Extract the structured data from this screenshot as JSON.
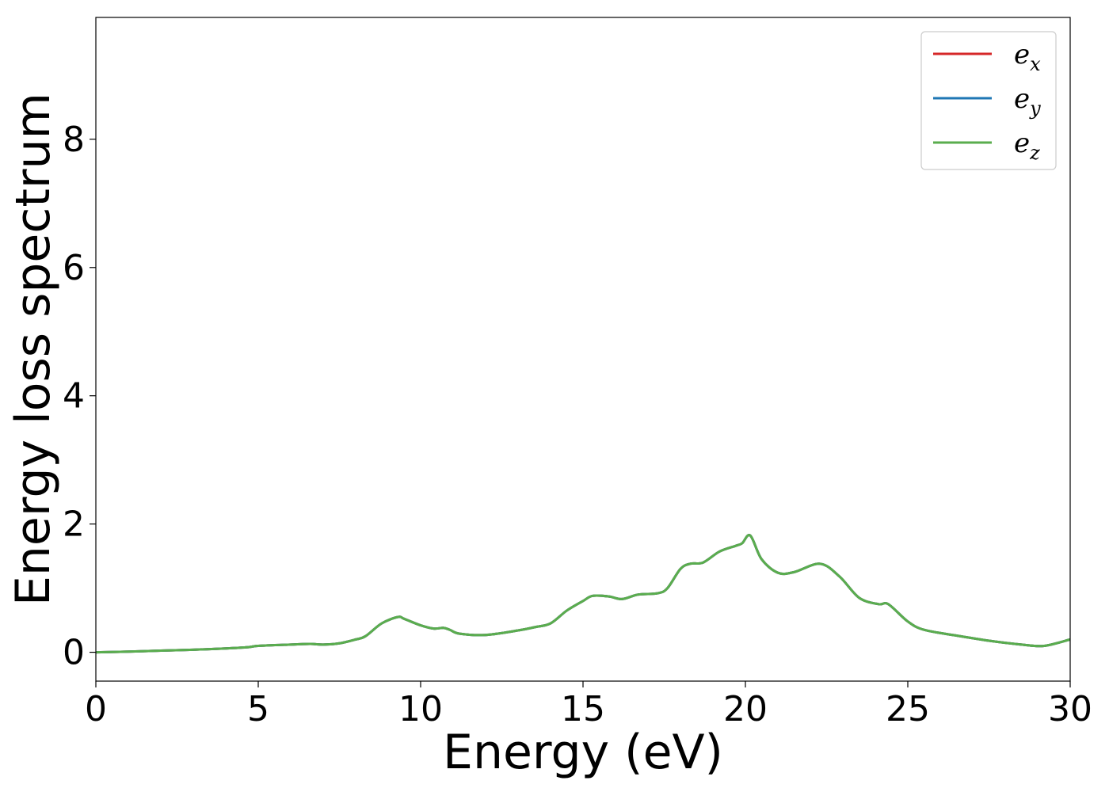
{
  "chart_data": {
    "type": "line",
    "xlabel": "Energy (eV)",
    "ylabel": "Energy loss spectrum",
    "xlim": [
      0,
      30
    ],
    "ylim": [
      -0.45,
      9.9
    ],
    "xticks": [
      0,
      5,
      10,
      15,
      20,
      25,
      30
    ],
    "xtick_labels": [
      "0",
      "5",
      "10",
      "15",
      "20",
      "25",
      "30"
    ],
    "yticks": [
      0,
      2,
      4,
      6,
      8
    ],
    "ytick_labels": [
      "0",
      "2",
      "4",
      "6",
      "8"
    ],
    "grid": false,
    "legend": "top-right",
    "x": [
      0,
      1,
      2,
      3,
      4,
      4.7,
      5,
      6,
      6.6,
      7,
      7.5,
      8,
      8.3,
      8.8,
      9.3,
      9.5,
      10,
      10.4,
      10.7,
      10.9,
      11.2,
      12,
      13,
      13.5,
      14,
      14.5,
      15,
      15.3,
      15.8,
      16.2,
      16.7,
      17.3,
      17.6,
      18,
      18.3,
      18.7,
      19.2,
      19.7,
      19.9,
      20.15,
      20.5,
      21,
      21.5,
      22.3,
      22.9,
      23.5,
      24.1,
      24.4,
      25,
      25.5,
      26.5,
      27.5,
      28.5,
      29.2,
      30
    ],
    "series": [
      {
        "name": "e_x",
        "label_base": "e",
        "label_sub": "x",
        "color": "#d62728",
        "values": [
          0,
          0.01,
          0.025,
          0.04,
          0.06,
          0.08,
          0.1,
          0.12,
          0.13,
          0.12,
          0.14,
          0.2,
          0.25,
          0.45,
          0.55,
          0.52,
          0.42,
          0.37,
          0.38,
          0.35,
          0.29,
          0.27,
          0.34,
          0.39,
          0.45,
          0.65,
          0.8,
          0.88,
          0.87,
          0.83,
          0.9,
          0.92,
          1.0,
          1.3,
          1.38,
          1.4,
          1.57,
          1.66,
          1.7,
          1.82,
          1.45,
          1.24,
          1.25,
          1.38,
          1.18,
          0.85,
          0.75,
          0.75,
          0.48,
          0.35,
          0.26,
          0.18,
          0.12,
          0.1,
          0.2
        ]
      },
      {
        "name": "e_y",
        "label_base": "e",
        "label_sub": "y",
        "color": "#1f77b4",
        "values": [
          0,
          0.01,
          0.025,
          0.04,
          0.06,
          0.08,
          0.1,
          0.12,
          0.13,
          0.12,
          0.14,
          0.2,
          0.25,
          0.45,
          0.55,
          0.52,
          0.42,
          0.37,
          0.38,
          0.35,
          0.29,
          0.27,
          0.34,
          0.39,
          0.45,
          0.65,
          0.8,
          0.88,
          0.87,
          0.83,
          0.9,
          0.92,
          1.0,
          1.3,
          1.38,
          1.4,
          1.57,
          1.66,
          1.7,
          1.82,
          1.45,
          1.24,
          1.25,
          1.38,
          1.18,
          0.85,
          0.75,
          0.75,
          0.48,
          0.35,
          0.26,
          0.18,
          0.12,
          0.1,
          0.2
        ]
      },
      {
        "name": "e_z",
        "label_base": "e",
        "label_sub": "z",
        "color": "#5aad4e",
        "values": [
          0,
          0.01,
          0.025,
          0.04,
          0.06,
          0.08,
          0.1,
          0.12,
          0.13,
          0.12,
          0.14,
          0.2,
          0.25,
          0.45,
          0.55,
          0.52,
          0.42,
          0.37,
          0.38,
          0.35,
          0.29,
          0.27,
          0.34,
          0.39,
          0.45,
          0.65,
          0.8,
          0.88,
          0.87,
          0.83,
          0.9,
          0.92,
          1.0,
          1.3,
          1.38,
          1.4,
          1.57,
          1.66,
          1.7,
          1.82,
          1.45,
          1.24,
          1.25,
          1.38,
          1.18,
          0.85,
          0.75,
          0.75,
          0.48,
          0.35,
          0.26,
          0.18,
          0.12,
          0.1,
          0.2
        ]
      }
    ]
  }
}
